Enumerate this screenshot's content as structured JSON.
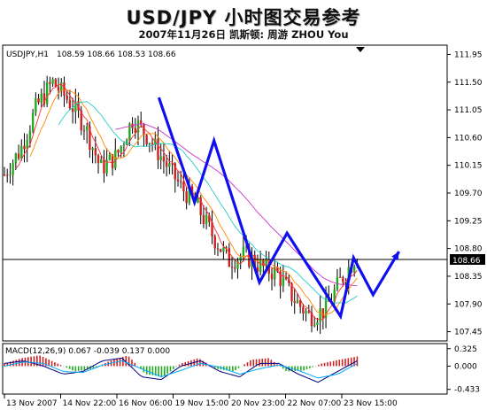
{
  "header": {
    "title": "USD/JPY 小时图交易参考",
    "subtitle": "2007年11月26日  凯斯顿: 周游 ZHOU You"
  },
  "chart_data": [
    {
      "type": "candlestick",
      "symbol_label": "USDJPY,H1",
      "ohlc_label": "108.59 108.66 108.53 108.66",
      "ylim": [
        107.3,
        112.1
      ],
      "y_ticks": [
        "111.95",
        "111.50",
        "111.05",
        "110.60",
        "110.15",
        "109.70",
        "109.25",
        "108.80",
        "108.35",
        "107.90",
        "107.45"
      ],
      "current_price": "108.66",
      "x_labels": [
        "13 Nov 2007",
        "14 Nov 22:00",
        "16 Nov 06:00",
        "19 Nov 15:00",
        "20 Nov 23:00",
        "22 Nov 07:00",
        "23 Nov 15:00"
      ],
      "price_path": [
        110.0,
        110.4,
        111.1,
        111.5,
        111.2,
        110.8,
        110.1,
        110.3,
        110.9,
        110.6,
        110.2,
        109.8,
        109.5,
        109.0,
        108.6,
        108.7,
        108.5,
        108.4,
        108.0,
        107.7,
        107.8,
        108.3,
        108.7
      ],
      "annotation_path": [
        {
          "t": 0.435,
          "p": 111.25
        },
        {
          "t": 0.545,
          "p": 109.55
        },
        {
          "t": 0.605,
          "p": 110.55
        },
        {
          "t": 0.745,
          "p": 108.25
        },
        {
          "t": 0.83,
          "p": 109.05
        },
        {
          "t": 0.995,
          "p": 107.7
        },
        {
          "t": 1.035,
          "p": 108.65
        },
        {
          "t": 1.095,
          "p": 108.05
        },
        {
          "t": 1.175,
          "p": 108.75
        }
      ],
      "annotation_color": "#1010ee"
    },
    {
      "type": "macd",
      "label": "MACD(12,26,9) 0.067 -0.039 0.137 0.000",
      "ylim": [
        -0.52,
        0.42
      ],
      "y_ticks": [
        "0.325",
        "0.000",
        "-0.433"
      ],
      "histogram_path": [
        0.05,
        0.15,
        0.2,
        0.05,
        -0.1,
        -0.05,
        0.1,
        0.2,
        -0.15,
        -0.2,
        0.05,
        0.15,
        -0.05,
        -0.1,
        0.12,
        0.15,
        -0.1,
        -0.08,
        0.05,
        0.12,
        0.18
      ],
      "line_path": [
        0.05,
        0.1,
        0.0,
        -0.15,
        -0.1,
        0.1,
        0.15,
        -0.2,
        -0.25,
        0.0,
        0.1,
        -0.1,
        -0.2,
        0.05,
        0.05,
        -0.15,
        -0.3,
        -0.1,
        0.1
      ],
      "signal_path": [
        0.0,
        0.08,
        0.05,
        -0.1,
        -0.12,
        0.02,
        0.1,
        -0.05,
        -0.2,
        -0.08,
        0.05,
        -0.02,
        -0.15,
        -0.05,
        0.02,
        -0.08,
        -0.22,
        -0.15,
        0.05
      ]
    }
  ]
}
